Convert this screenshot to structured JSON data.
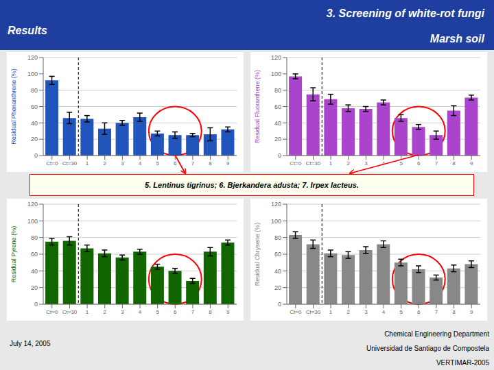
{
  "title": "3. Screening of white-rot fungi",
  "subtitle": "Marsh soil",
  "annotations": [
    "Results",
    "5. Lentinus tigrinus; 6. Bjerkandera adusta; 7. Irpex lacteus.",
    "July 14, 2005",
    "Chemical Engineering Department",
    "Universidad de Santiago de Compostela",
    "VERTIMAR-2005"
  ],
  "chart_data": [
    {
      "type": "bar",
      "ylabel": "Residual Phenanthrene (%)",
      "categories": [
        "Ct=0",
        "Ct=30",
        "1",
        "2",
        "3",
        "4",
        "5",
        "6",
        "7",
        "8",
        "9"
      ],
      "values": [
        92,
        46,
        45,
        33,
        40,
        47,
        27,
        25,
        25,
        26,
        32
      ],
      "errors": [
        5,
        7,
        4,
        7,
        3,
        5,
        3,
        4,
        2,
        8,
        3
      ],
      "color": "#2255bb",
      "ylim": [
        0,
        120
      ],
      "yticks": [
        0,
        20,
        40,
        60,
        80,
        100,
        120
      ],
      "grid": true
    },
    {
      "type": "bar",
      "ylabel": "Residual Fluoranthene (%)",
      "categories": [
        "Ct=0",
        "Ct=30",
        "1",
        "2",
        "3",
        "4",
        "5",
        "6",
        "7",
        "8",
        "9"
      ],
      "values": [
        97,
        75,
        69,
        58,
        57,
        65,
        46,
        35,
        25,
        55,
        71
      ],
      "errors": [
        3,
        8,
        6,
        4,
        3,
        3,
        4,
        3,
        5,
        6,
        3
      ],
      "color": "#aa44cc",
      "ylim": [
        0,
        120
      ],
      "yticks": [
        0,
        20,
        40,
        60,
        80,
        100,
        120
      ],
      "grid": true
    },
    {
      "type": "bar",
      "ylabel": "Residual Pyrene (%)",
      "categories": [
        "Ct=0",
        "Ct=30",
        "1",
        "2",
        "3",
        "4",
        "5",
        "6",
        "7",
        "8",
        "9"
      ],
      "values": [
        75,
        76,
        67,
        61,
        56,
        63,
        45,
        40,
        28,
        63,
        74
      ],
      "errors": [
        4,
        5,
        4,
        4,
        3,
        3,
        3,
        3,
        3,
        5,
        3
      ],
      "color": "#116600",
      "ylim": [
        0,
        120
      ],
      "yticks": [
        0,
        20,
        40,
        60,
        80,
        100,
        120
      ],
      "grid": true
    },
    {
      "type": "bar",
      "ylabel": "Residual Chrysene (%)",
      "categories": [
        "Ct=0",
        "Ct=30",
        "1",
        "2",
        "3",
        "4",
        "5",
        "6",
        "7",
        "8",
        "9"
      ],
      "values": [
        83,
        72,
        61,
        59,
        65,
        72,
        50,
        42,
        32,
        43,
        48
      ],
      "errors": [
        4,
        5,
        4,
        4,
        4,
        4,
        4,
        4,
        3,
        4,
        4
      ],
      "color": "#888888",
      "ylim": [
        0,
        120
      ],
      "yticks": [
        0,
        20,
        40,
        60,
        80,
        100,
        120
      ],
      "grid": true
    }
  ]
}
